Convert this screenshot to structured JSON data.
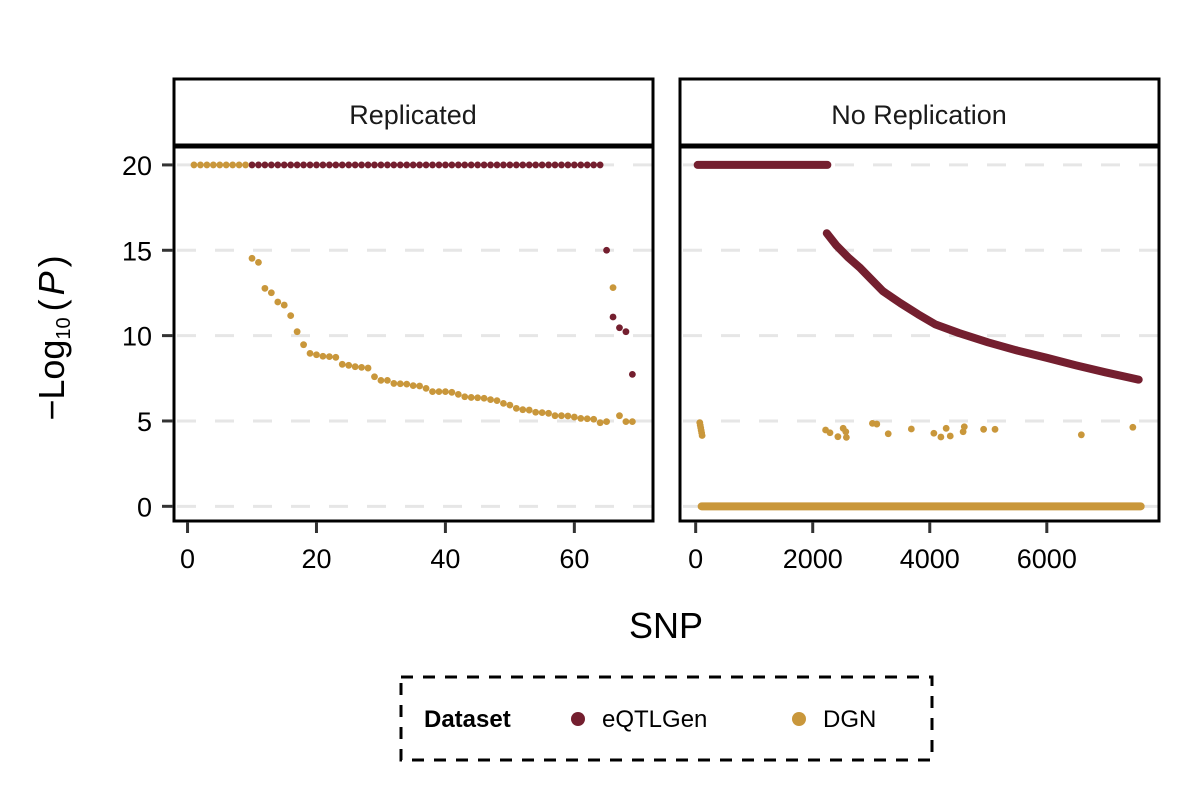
{
  "chart_data": [
    {
      "type": "scatter",
      "panel_title": "Replicated",
      "xlabel": "SNP",
      "ylabel": "-Log10(P)",
      "xlim": [
        -2.1,
        72.2
      ],
      "ylim": [
        -0.86,
        21.05
      ],
      "x_ticks": [
        0,
        20,
        40,
        60
      ],
      "y_ticks": [
        0,
        5,
        10,
        15,
        20
      ],
      "grid": "horizontal dashed",
      "series": [
        {
          "name": "eQTLGen",
          "color": "#741f2f",
          "points": [
            [
              10,
              20
            ],
            [
              11,
              20
            ],
            [
              12,
              20
            ],
            [
              13,
              20
            ],
            [
              14,
              20
            ],
            [
              15,
              20
            ],
            [
              16,
              20
            ],
            [
              17,
              20
            ],
            [
              18,
              20
            ],
            [
              19,
              20
            ],
            [
              20,
              20
            ],
            [
              21,
              20
            ],
            [
              22,
              20
            ],
            [
              23,
              20
            ],
            [
              24,
              20
            ],
            [
              25,
              20
            ],
            [
              26,
              20
            ],
            [
              27,
              20
            ],
            [
              28,
              20
            ],
            [
              29,
              20
            ],
            [
              30,
              20
            ],
            [
              31,
              20
            ],
            [
              32,
              20
            ],
            [
              33,
              20
            ],
            [
              34,
              20
            ],
            [
              35,
              20
            ],
            [
              36,
              20
            ],
            [
              37,
              20
            ],
            [
              38,
              20
            ],
            [
              39,
              20
            ],
            [
              40,
              20
            ],
            [
              41,
              20
            ],
            [
              42,
              20
            ],
            [
              43,
              20
            ],
            [
              44,
              20
            ],
            [
              45,
              20
            ],
            [
              46,
              20
            ],
            [
              47,
              20
            ],
            [
              48,
              20
            ],
            [
              49,
              20
            ],
            [
              50,
              20
            ],
            [
              51,
              20
            ],
            [
              52,
              20
            ],
            [
              53,
              20
            ],
            [
              54,
              20
            ],
            [
              55,
              20
            ],
            [
              56,
              20
            ],
            [
              57,
              20
            ],
            [
              58,
              20
            ],
            [
              59,
              20
            ],
            [
              60,
              20
            ],
            [
              61,
              20
            ],
            [
              62,
              20
            ],
            [
              63,
              20
            ],
            [
              64,
              20
            ],
            [
              65,
              15.0
            ],
            [
              66,
              11.09
            ],
            [
              67,
              10.46
            ],
            [
              68,
              10.23
            ],
            [
              69,
              7.73
            ]
          ]
        },
        {
          "name": "DGN",
          "color": "#c9973b",
          "points": [
            [
              1,
              20
            ],
            [
              2,
              20
            ],
            [
              3,
              20
            ],
            [
              4,
              20
            ],
            [
              5,
              20
            ],
            [
              6,
              20
            ],
            [
              7,
              20
            ],
            [
              8,
              20
            ],
            [
              9,
              20
            ],
            [
              10,
              14.53
            ],
            [
              11,
              14.29
            ],
            [
              12,
              12.77
            ],
            [
              13,
              12.51
            ],
            [
              14,
              11.97
            ],
            [
              15,
              11.79
            ],
            [
              16,
              11.17
            ],
            [
              17,
              10.23
            ],
            [
              18,
              9.47
            ],
            [
              19,
              8.96
            ],
            [
              20,
              8.88
            ],
            [
              21,
              8.79
            ],
            [
              22,
              8.77
            ],
            [
              23,
              8.73
            ],
            [
              24,
              8.32
            ],
            [
              25,
              8.26
            ],
            [
              26,
              8.18
            ],
            [
              27,
              8.14
            ],
            [
              28,
              8.1
            ],
            [
              29,
              7.59
            ],
            [
              30,
              7.38
            ],
            [
              31,
              7.38
            ],
            [
              32,
              7.2
            ],
            [
              33,
              7.18
            ],
            [
              34,
              7.16
            ],
            [
              35,
              7.07
            ],
            [
              36,
              7.05
            ],
            [
              37,
              6.91
            ],
            [
              38,
              6.72
            ],
            [
              39,
              6.72
            ],
            [
              40,
              6.72
            ],
            [
              41,
              6.68
            ],
            [
              42,
              6.56
            ],
            [
              43,
              6.42
            ],
            [
              44,
              6.38
            ],
            [
              45,
              6.36
            ],
            [
              46,
              6.33
            ],
            [
              47,
              6.25
            ],
            [
              48,
              6.19
            ],
            [
              49,
              6.03
            ],
            [
              50,
              5.93
            ],
            [
              51,
              5.74
            ],
            [
              52,
              5.66
            ],
            [
              53,
              5.64
            ],
            [
              54,
              5.51
            ],
            [
              55,
              5.49
            ],
            [
              56,
              5.45
            ],
            [
              57,
              5.31
            ],
            [
              58,
              5.31
            ],
            [
              59,
              5.29
            ],
            [
              60,
              5.23
            ],
            [
              61,
              5.15
            ],
            [
              62,
              5.13
            ],
            [
              63,
              5.1
            ],
            [
              64,
              4.9
            ],
            [
              65,
              4.96
            ],
            [
              66,
              12.81
            ],
            [
              67,
              5.31
            ],
            [
              68,
              4.96
            ],
            [
              69,
              4.96
            ]
          ]
        }
      ]
    },
    {
      "type": "scatter",
      "panel_title": "No Replication",
      "xlabel": "SNP",
      "ylabel": "-Log10(P)",
      "xlim": [
        -268,
        7917
      ],
      "ylim": [
        -0.86,
        21.05
      ],
      "x_ticks": [
        0,
        2000,
        4000,
        6000
      ],
      "y_ticks": [
        0,
        5,
        10,
        15,
        20
      ],
      "grid": "horizontal dashed",
      "series": [
        {
          "name": "eQTLGen",
          "color": "#741f2f",
          "runs": [
            {
              "x_from": 34,
              "x_to": 2250,
              "y": 20
            }
          ],
          "curve": [
            [
              2240,
              16.0
            ],
            [
              2400,
              15.3
            ],
            [
              2600,
              14.6
            ],
            [
              2800,
              14.0
            ],
            [
              3000,
              13.3
            ],
            [
              3200,
              12.6
            ],
            [
              3500,
              11.9
            ],
            [
              3800,
              11.25
            ],
            [
              4100,
              10.65
            ],
            [
              4500,
              10.15
            ],
            [
              5000,
              9.6
            ],
            [
              5500,
              9.12
            ],
            [
              6000,
              8.7
            ],
            [
              6500,
              8.26
            ],
            [
              7000,
              7.85
            ],
            [
              7570,
              7.42
            ]
          ]
        },
        {
          "name": "DGN",
          "color": "#c9973b",
          "runs": [
            {
              "x_from": 102,
              "x_to": 7604,
              "y": 0
            }
          ],
          "points": [
            [
              70,
              4.9
            ],
            [
              78,
              4.75
            ],
            [
              86,
              4.6
            ],
            [
              94,
              4.45
            ],
            [
              102,
              4.3
            ],
            [
              110,
              4.15
            ],
            [
              2220,
              4.47
            ],
            [
              2295,
              4.31
            ],
            [
              2430,
              4.08
            ],
            [
              2520,
              4.57
            ],
            [
              2565,
              4.37
            ],
            [
              2575,
              4.04
            ],
            [
              3020,
              4.86
            ],
            [
              3095,
              4.82
            ],
            [
              3290,
              4.25
            ],
            [
              3685,
              4.53
            ],
            [
              4070,
              4.28
            ],
            [
              4190,
              4.06
            ],
            [
              4280,
              4.57
            ],
            [
              4350,
              4.12
            ],
            [
              4570,
              4.37
            ],
            [
              4590,
              4.66
            ],
            [
              4920,
              4.51
            ],
            [
              5115,
              4.51
            ],
            [
              6590,
              4.19
            ],
            [
              7470,
              4.63
            ]
          ]
        }
      ]
    }
  ],
  "axes": {
    "x_title": "SNP",
    "y_title_prefix": "−Log",
    "y_title_sub": "10",
    "y_title_var": "P",
    "y_tick_labels": [
      "0",
      "5",
      "10",
      "15",
      "20"
    ],
    "left_x_tick_labels": [
      "0",
      "20",
      "40",
      "60"
    ],
    "right_x_tick_labels": [
      "0",
      "2000",
      "4000",
      "6000"
    ]
  },
  "panels": {
    "left_title": "Replicated",
    "right_title": "No Replication"
  },
  "legend": {
    "title": "Dataset",
    "items": [
      {
        "label": "eQTLGen",
        "color": "#741f2f"
      },
      {
        "label": "DGN",
        "color": "#c9973b"
      }
    ]
  }
}
